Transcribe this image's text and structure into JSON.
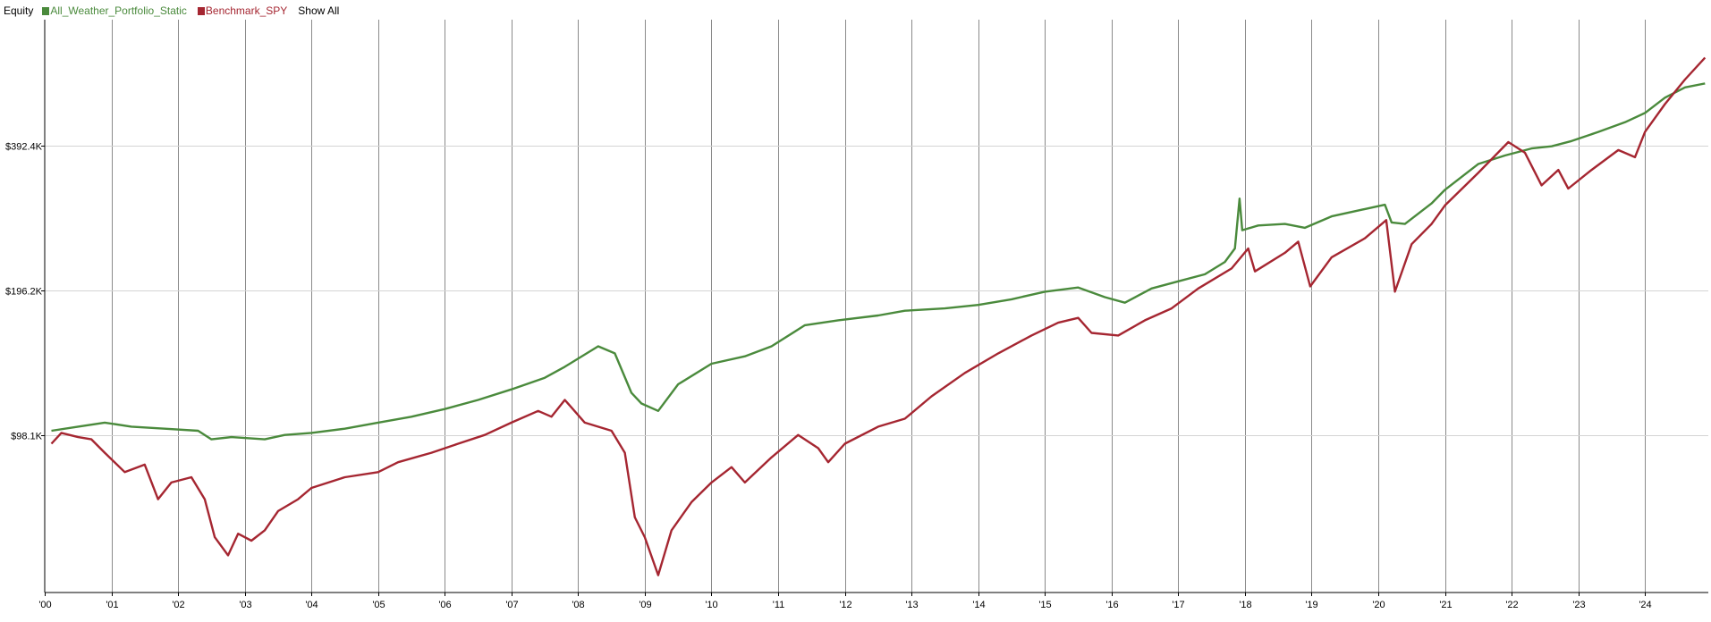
{
  "chart_data": {
    "type": "line",
    "title": "Equity",
    "legend_position": "top-left",
    "y_scale": "log",
    "y_ticks": [
      {
        "value": 98100,
        "label": "$98.1K"
      },
      {
        "value": 196200,
        "label": "$196.2K"
      },
      {
        "value": 392400,
        "label": "$392.4K"
      }
    ],
    "ylim": [
      46000,
      720000
    ],
    "xlim": [
      2000.0,
      2024.95
    ],
    "x_ticks": [
      {
        "value": 2000,
        "label": "'00"
      },
      {
        "value": 2001,
        "label": "'01"
      },
      {
        "value": 2002,
        "label": "'02"
      },
      {
        "value": 2003,
        "label": "'03"
      },
      {
        "value": 2004,
        "label": "'04"
      },
      {
        "value": 2005,
        "label": "'05"
      },
      {
        "value": 2006,
        "label": "'06"
      },
      {
        "value": 2007,
        "label": "'07"
      },
      {
        "value": 2008,
        "label": "'08"
      },
      {
        "value": 2009,
        "label": "'09"
      },
      {
        "value": 2010,
        "label": "'10"
      },
      {
        "value": 2011,
        "label": "'11"
      },
      {
        "value": 2012,
        "label": "'12"
      },
      {
        "value": 2013,
        "label": "'13"
      },
      {
        "value": 2014,
        "label": "'14"
      },
      {
        "value": 2015,
        "label": "'15"
      },
      {
        "value": 2016,
        "label": "'16"
      },
      {
        "value": 2017,
        "label": "'17"
      },
      {
        "value": 2018,
        "label": "'18"
      },
      {
        "value": 2019,
        "label": "'19"
      },
      {
        "value": 2020,
        "label": "'20"
      },
      {
        "value": 2021,
        "label": "'21"
      },
      {
        "value": 2022,
        "label": "'22"
      },
      {
        "value": 2023,
        "label": "'23"
      },
      {
        "value": 2024,
        "label": "'24"
      }
    ],
    "grid": {
      "vertical": true,
      "horizontal": true
    },
    "series": [
      {
        "name": "All_Weather_Portfolio_Static",
        "color": "#4a8a3c",
        "points": [
          [
            2000.1,
            100000
          ],
          [
            2000.5,
            102000
          ],
          [
            2000.9,
            104000
          ],
          [
            2001.3,
            102000
          ],
          [
            2001.8,
            101000
          ],
          [
            2002.3,
            100000
          ],
          [
            2002.5,
            96000
          ],
          [
            2002.8,
            97000
          ],
          [
            2003.3,
            96000
          ],
          [
            2003.6,
            98000
          ],
          [
            2004.0,
            99000
          ],
          [
            2004.5,
            101000
          ],
          [
            2005.0,
            104000
          ],
          [
            2005.5,
            107000
          ],
          [
            2006.0,
            111000
          ],
          [
            2006.5,
            116000
          ],
          [
            2007.0,
            122000
          ],
          [
            2007.5,
            129000
          ],
          [
            2007.8,
            136000
          ],
          [
            2008.3,
            150000
          ],
          [
            2008.55,
            145000
          ],
          [
            2008.8,
            120000
          ],
          [
            2008.95,
            114000
          ],
          [
            2009.2,
            110000
          ],
          [
            2009.5,
            125000
          ],
          [
            2010.0,
            138000
          ],
          [
            2010.5,
            143000
          ],
          [
            2010.9,
            150000
          ],
          [
            2011.4,
            166000
          ],
          [
            2011.9,
            170000
          ],
          [
            2012.5,
            174000
          ],
          [
            2012.9,
            178000
          ],
          [
            2013.5,
            180000
          ],
          [
            2014.0,
            183000
          ],
          [
            2014.5,
            188000
          ],
          [
            2015.0,
            195000
          ],
          [
            2015.5,
            199000
          ],
          [
            2015.9,
            190000
          ],
          [
            2016.2,
            185000
          ],
          [
            2016.6,
            198000
          ],
          [
            2017.0,
            205000
          ],
          [
            2017.4,
            212000
          ],
          [
            2017.7,
            225000
          ],
          [
            2017.85,
            240000
          ],
          [
            2017.92,
            305000
          ],
          [
            2017.96,
            262000
          ],
          [
            2018.2,
            268000
          ],
          [
            2018.6,
            270000
          ],
          [
            2018.9,
            265000
          ],
          [
            2019.3,
            280000
          ],
          [
            2019.8,
            290000
          ],
          [
            2020.1,
            296000
          ],
          [
            2020.2,
            272000
          ],
          [
            2020.4,
            270000
          ],
          [
            2020.8,
            298000
          ],
          [
            2021.0,
            318000
          ],
          [
            2021.5,
            360000
          ],
          [
            2021.9,
            375000
          ],
          [
            2022.3,
            388000
          ],
          [
            2022.6,
            392000
          ],
          [
            2022.9,
            402000
          ],
          [
            2023.3,
            420000
          ],
          [
            2023.7,
            440000
          ],
          [
            2024.0,
            460000
          ],
          [
            2024.3,
            495000
          ],
          [
            2024.6,
            520000
          ],
          [
            2024.9,
            530000
          ]
        ]
      },
      {
        "name": "Benchmark_SPY",
        "color": "#a52631",
        "points": [
          [
            2000.1,
            94000
          ],
          [
            2000.25,
            99000
          ],
          [
            2000.5,
            97000
          ],
          [
            2000.7,
            96000
          ],
          [
            2000.9,
            90000
          ],
          [
            2001.2,
            82000
          ],
          [
            2001.5,
            85000
          ],
          [
            2001.7,
            72000
          ],
          [
            2001.9,
            78000
          ],
          [
            2002.2,
            80000
          ],
          [
            2002.4,
            72000
          ],
          [
            2002.55,
            60000
          ],
          [
            2002.75,
            55000
          ],
          [
            2002.9,
            61000
          ],
          [
            2003.1,
            59000
          ],
          [
            2003.3,
            62000
          ],
          [
            2003.5,
            68000
          ],
          [
            2003.8,
            72000
          ],
          [
            2004.0,
            76000
          ],
          [
            2004.5,
            80000
          ],
          [
            2005.0,
            82000
          ],
          [
            2005.3,
            86000
          ],
          [
            2005.8,
            90000
          ],
          [
            2006.2,
            94000
          ],
          [
            2006.6,
            98000
          ],
          [
            2007.0,
            104000
          ],
          [
            2007.4,
            110000
          ],
          [
            2007.6,
            107000
          ],
          [
            2007.8,
            116000
          ],
          [
            2008.1,
            104000
          ],
          [
            2008.5,
            100000
          ],
          [
            2008.7,
            90000
          ],
          [
            2008.85,
            66000
          ],
          [
            2009.0,
            60000
          ],
          [
            2009.2,
            50000
          ],
          [
            2009.4,
            62000
          ],
          [
            2009.7,
            71000
          ],
          [
            2010.0,
            78000
          ],
          [
            2010.3,
            84000
          ],
          [
            2010.5,
            78000
          ],
          [
            2010.9,
            88000
          ],
          [
            2011.3,
            98000
          ],
          [
            2011.6,
            92000
          ],
          [
            2011.75,
            86000
          ],
          [
            2012.0,
            94000
          ],
          [
            2012.5,
            102000
          ],
          [
            2012.9,
            106000
          ],
          [
            2013.3,
            118000
          ],
          [
            2013.8,
            132000
          ],
          [
            2014.3,
            145000
          ],
          [
            2014.8,
            158000
          ],
          [
            2015.2,
            168000
          ],
          [
            2015.5,
            172000
          ],
          [
            2015.7,
            160000
          ],
          [
            2016.1,
            158000
          ],
          [
            2016.5,
            170000
          ],
          [
            2016.9,
            180000
          ],
          [
            2017.3,
            198000
          ],
          [
            2017.8,
            218000
          ],
          [
            2018.05,
            240000
          ],
          [
            2018.15,
            215000
          ],
          [
            2018.6,
            235000
          ],
          [
            2018.8,
            248000
          ],
          [
            2018.98,
            200000
          ],
          [
            2019.3,
            230000
          ],
          [
            2019.8,
            252000
          ],
          [
            2020.12,
            275000
          ],
          [
            2020.25,
            195000
          ],
          [
            2020.5,
            245000
          ],
          [
            2020.8,
            270000
          ],
          [
            2021.0,
            295000
          ],
          [
            2021.5,
            345000
          ],
          [
            2021.95,
            400000
          ],
          [
            2022.2,
            380000
          ],
          [
            2022.45,
            325000
          ],
          [
            2022.7,
            350000
          ],
          [
            2022.85,
            320000
          ],
          [
            2023.2,
            350000
          ],
          [
            2023.6,
            385000
          ],
          [
            2023.85,
            372000
          ],
          [
            2024.0,
            420000
          ],
          [
            2024.3,
            480000
          ],
          [
            2024.6,
            540000
          ],
          [
            2024.9,
            600000
          ]
        ]
      }
    ]
  },
  "legend": {
    "title": "Equity",
    "items": [
      {
        "label": "All_Weather_Portfolio_Static",
        "color": "#4a8a3c"
      },
      {
        "label": "Benchmark_SPY",
        "color": "#a52631"
      }
    ],
    "show_all": "Show All"
  }
}
